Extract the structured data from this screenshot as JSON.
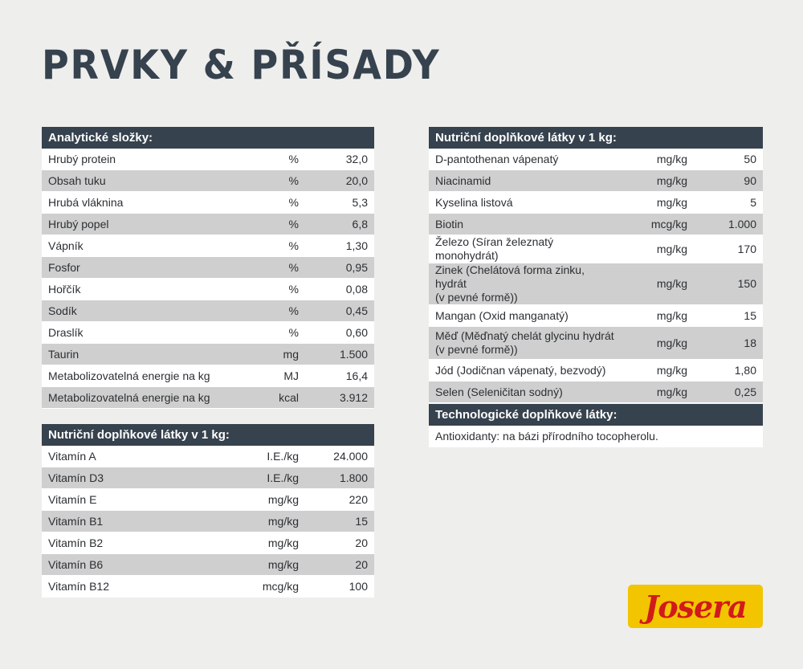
{
  "page": {
    "title": "PRVKY & PŘÍSADY"
  },
  "analytical": {
    "header": "Analytické složky:",
    "rows": [
      {
        "name": "Hrubý protein",
        "unit": "%",
        "value": "32,0"
      },
      {
        "name": "Obsah tuku",
        "unit": "%",
        "value": "20,0"
      },
      {
        "name": "Hrubá vláknina",
        "unit": "%",
        "value": "5,3"
      },
      {
        "name": "Hrubý popel",
        "unit": "%",
        "value": "6,8"
      },
      {
        "name": "Vápník",
        "unit": "%",
        "value": "1,30"
      },
      {
        "name": "Fosfor",
        "unit": "%",
        "value": "0,95"
      },
      {
        "name": "Hořčík",
        "unit": "%",
        "value": "0,08"
      },
      {
        "name": "Sodík",
        "unit": "%",
        "value": "0,45"
      },
      {
        "name": "Draslík",
        "unit": "%",
        "value": "0,60"
      },
      {
        "name": "Taurin",
        "unit": "mg",
        "value": "1.500"
      },
      {
        "name": "Metabolizovatelná energie na kg",
        "unit": "MJ",
        "value": "16,4"
      },
      {
        "name": "Metabolizovatelná energie na kg",
        "unit": "kcal",
        "value": "3.912"
      }
    ]
  },
  "vitamins": {
    "header": "Nutriční doplňkové látky v 1 kg:",
    "rows": [
      {
        "name": "Vitamín A",
        "unit": "I.E./kg",
        "value": "24.000"
      },
      {
        "name": "Vitamín D3",
        "unit": "I.E./kg",
        "value": "1.800"
      },
      {
        "name": "Vitamín E",
        "unit": "mg/kg",
        "value": "220"
      },
      {
        "name": "Vitamín B1",
        "unit": "mg/kg",
        "value": "15"
      },
      {
        "name": "Vitamín B2",
        "unit": "mg/kg",
        "value": "20"
      },
      {
        "name": "Vitamín B6",
        "unit": "mg/kg",
        "value": "20"
      },
      {
        "name": "Vitamín B12",
        "unit": "mcg/kg",
        "value": "100"
      }
    ]
  },
  "minerals": {
    "header": "Nutriční doplňkové látky v 1 kg:",
    "rows": [
      {
        "name": "D-pantothenan vápenatý",
        "unit": "mg/kg",
        "value": "50"
      },
      {
        "name": "Niacinamid",
        "unit": "mg/kg",
        "value": "90"
      },
      {
        "name": "Kyselina listová",
        "unit": "mg/kg",
        "value": "5"
      },
      {
        "name": "Biotin",
        "unit": "mcg/kg",
        "value": "1.000"
      },
      {
        "name": "Železo (Síran železnatý monohydrát)",
        "unit": "mg/kg",
        "value": "170"
      },
      {
        "name": "Zinek (Chelátová forma zinku, hydrát\n(v pevné formě))",
        "unit": "mg/kg",
        "value": "150"
      },
      {
        "name": "Mangan (Oxid manganatý)",
        "unit": "mg/kg",
        "value": "15"
      },
      {
        "name": "Měď (Měďnatý chelát glycinu hydrát\n(v pevné formě))",
        "unit": "mg/kg",
        "value": "18"
      },
      {
        "name": "Jód (Jodičnan vápenatý, bezvodý)",
        "unit": "mg/kg",
        "value": "1,80"
      },
      {
        "name": "Selen (Seleničitan sodný)",
        "unit": "mg/kg",
        "value": "0,25"
      }
    ]
  },
  "technological": {
    "header": "Technologické doplňkové látky:",
    "note": "Antioxidanty: na bázi přírodního tocopherolu."
  },
  "brand": {
    "logo_text": "Josera",
    "logo_bg": "#f2c500",
    "logo_fg": "#d11a1a"
  },
  "colors": {
    "header_bg": "#36424e",
    "row_alt": "#cfcfcf",
    "row": "#ffffff",
    "background": "#eeeeec"
  }
}
